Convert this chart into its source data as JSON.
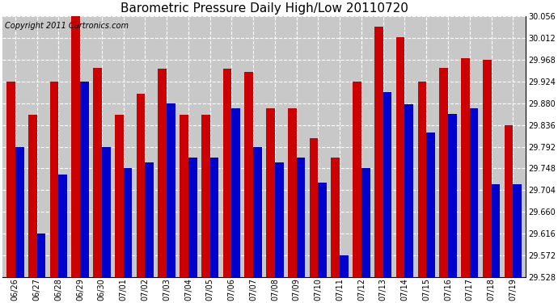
{
  "title": "Barometric Pressure Daily High/Low 20110720",
  "copyright": "Copyright 2011 Cartronics.com",
  "categories": [
    "06/26",
    "06/27",
    "06/28",
    "06/29",
    "06/30",
    "07/01",
    "07/02",
    "07/03",
    "07/04",
    "07/05",
    "07/06",
    "07/07",
    "07/08",
    "07/09",
    "07/10",
    "07/11",
    "07/12",
    "07/13",
    "07/14",
    "07/15",
    "07/16",
    "07/17",
    "07/18",
    "07/19"
  ],
  "highs": [
    29.924,
    29.856,
    29.924,
    30.056,
    29.952,
    29.856,
    29.9,
    29.95,
    29.856,
    29.856,
    29.95,
    29.944,
    29.87,
    29.87,
    29.81,
    29.77,
    29.924,
    30.036,
    30.014,
    29.924,
    29.952,
    29.972,
    29.968,
    29.836
  ],
  "lows": [
    29.792,
    29.616,
    29.736,
    29.924,
    29.792,
    29.748,
    29.76,
    29.88,
    29.77,
    29.77,
    29.87,
    29.792,
    29.76,
    29.77,
    29.72,
    29.572,
    29.748,
    29.902,
    29.878,
    29.82,
    29.858,
    29.87,
    29.716,
    29.716
  ],
  "high_color": "#cc0000",
  "low_color": "#0000cc",
  "plot_bg_color": "#c8c8c8",
  "fig_bg_color": "#ffffff",
  "ymin": 29.528,
  "ymax": 30.056,
  "yticks": [
    29.528,
    29.572,
    29.616,
    29.66,
    29.704,
    29.748,
    29.792,
    29.836,
    29.88,
    29.924,
    29.968,
    30.012,
    30.056
  ],
  "title_fontsize": 11,
  "copyright_fontsize": 7,
  "tick_fontsize": 7,
  "bar_width": 0.4
}
